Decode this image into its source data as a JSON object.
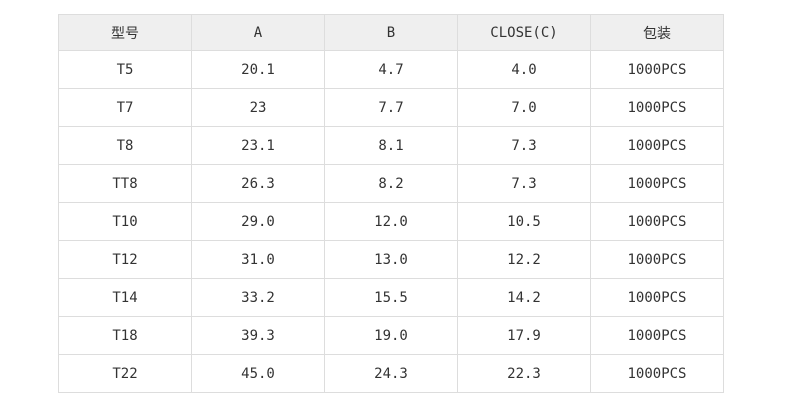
{
  "chart_data": {
    "type": "table",
    "columns": [
      "型号",
      "A",
      "B",
      "CLOSE(C)",
      "包装"
    ],
    "rows": [
      [
        "T5",
        "20.1",
        "4.7",
        "4.0",
        "1000PCS"
      ],
      [
        "T7",
        "23",
        "7.7",
        "7.0",
        "1000PCS"
      ],
      [
        "T8",
        "23.1",
        "8.1",
        "7.3",
        "1000PCS"
      ],
      [
        "TT8",
        "26.3",
        "8.2",
        "7.3",
        "1000PCS"
      ],
      [
        "T10",
        "29.0",
        "12.0",
        "10.5",
        "1000PCS"
      ],
      [
        "T12",
        "31.0",
        "13.0",
        "12.2",
        "1000PCS"
      ],
      [
        "T14",
        "33.2",
        "15.5",
        "14.2",
        "1000PCS"
      ],
      [
        "T18",
        "39.3",
        "19.0",
        "17.9",
        "1000PCS"
      ],
      [
        "T22",
        "45.0",
        "24.3",
        "22.3",
        "1000PCS"
      ]
    ],
    "layout": {
      "grid": true,
      "header_row": true
    }
  },
  "colors": {
    "header_background": "#efefef",
    "border": "#dddddd",
    "text": "#333333",
    "page_background": "#ffffff"
  }
}
